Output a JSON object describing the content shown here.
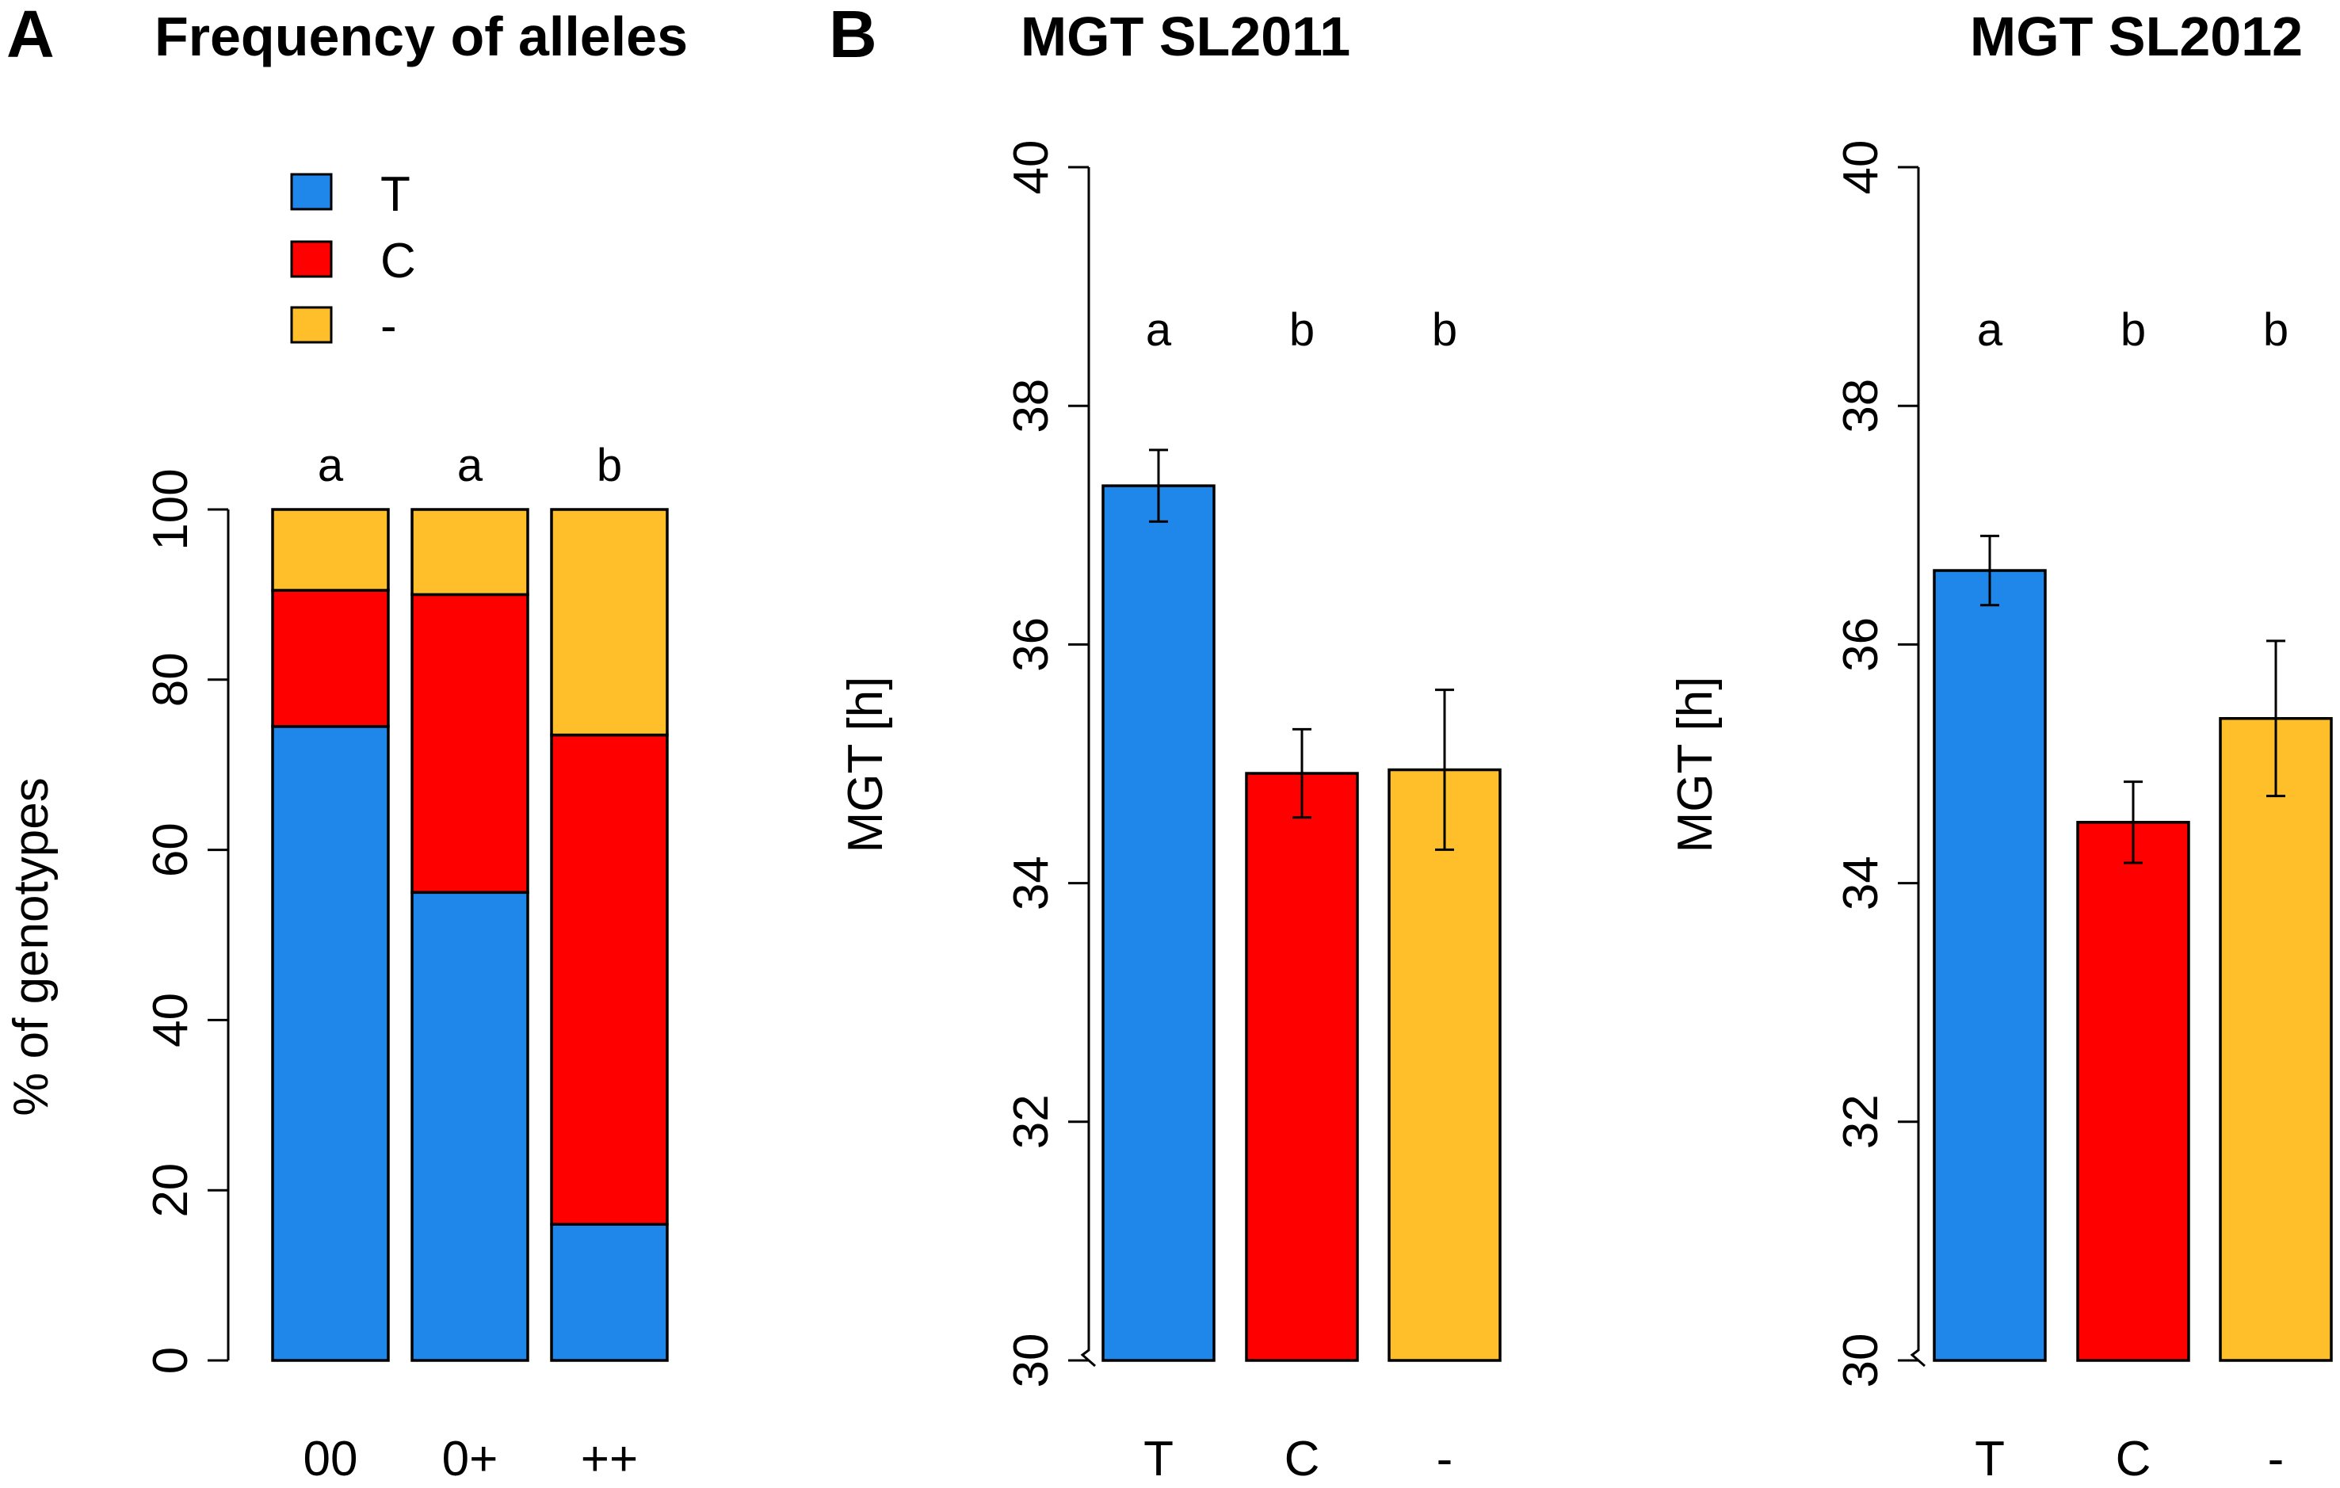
{
  "panel_labels": {
    "a": "A",
    "b": "B"
  },
  "colors": {
    "T": "#1f86ea",
    "C": "#ff0000",
    "-": "#ffbf2b"
  },
  "chart_data": [
    {
      "id": "freq",
      "type": "bar",
      "stacked": true,
      "title": "Frequency of alleles",
      "xlabel": "",
      "ylabel": "% of genotypes",
      "categories": [
        "00",
        "0+",
        "++"
      ],
      "series": [
        {
          "name": "T",
          "values": [
            74.5,
            55.0,
            16.0
          ]
        },
        {
          "name": "C",
          "values": [
            16.0,
            35.0,
            57.5
          ]
        },
        {
          "name": "-",
          "values": [
            9.5,
            10.0,
            26.5
          ]
        }
      ],
      "significance": [
        "a",
        "a",
        "b"
      ],
      "ylim": [
        0,
        100
      ],
      "yticks": [
        0,
        20,
        40,
        60,
        80,
        100
      ],
      "legend": {
        "position": "top-left",
        "entries": [
          "T",
          "C",
          "-"
        ]
      }
    },
    {
      "id": "sl2011",
      "type": "bar",
      "title": "MGT SL2011",
      "xlabel": "",
      "ylabel": "MGT [h]",
      "categories": [
        "T",
        "C",
        "-"
      ],
      "values": [
        37.33,
        34.92,
        34.95
      ],
      "errors": [
        0.3,
        0.37,
        0.67
      ],
      "significance": [
        "a",
        "b",
        "b"
      ],
      "ylim": [
        30,
        40
      ],
      "yticks": [
        30,
        32,
        34,
        36,
        38,
        40
      ],
      "axis_break": true
    },
    {
      "id": "sl2012",
      "type": "bar",
      "title": "MGT SL2012",
      "xlabel": "",
      "ylabel": "MGT [h]",
      "categories": [
        "T",
        "C",
        "-"
      ],
      "values": [
        36.62,
        34.51,
        35.38
      ],
      "errors": [
        0.29,
        0.34,
        0.65
      ],
      "significance": [
        "a",
        "b",
        "b"
      ],
      "ylim": [
        30,
        40
      ],
      "yticks": [
        30,
        32,
        34,
        36,
        38,
        40
      ],
      "axis_break": true
    }
  ]
}
